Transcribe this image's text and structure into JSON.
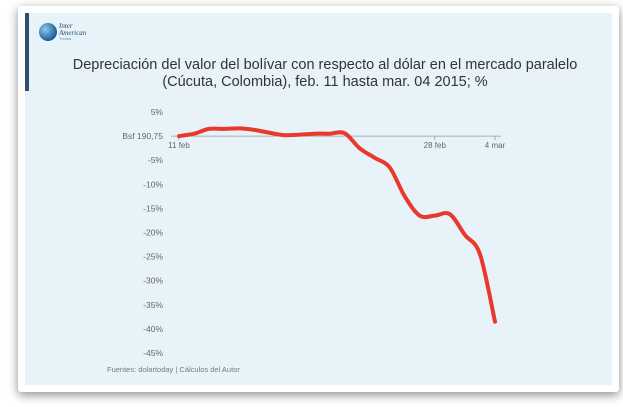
{
  "logo": {
    "line1": "Inter",
    "line2": "American",
    "line3": "Trends"
  },
  "source": "Fuentes: dolartoday | Cálculos del Autor",
  "colors": {
    "background": "#e8f3f9",
    "line": "#e8392c",
    "axis": "#999999",
    "text": "#333333"
  },
  "chart_data": {
    "type": "line",
    "title": "Depreciación del valor del bolívar con respecto al dólar en el mercado paralelo (Cúcuta, Colombia), feb. 11 hasta mar. 04 2015; %",
    "xlabel": "",
    "ylabel": "",
    "ylim": [
      -45,
      5
    ],
    "y_ticks": [
      5,
      0,
      -5,
      -10,
      -15,
      -20,
      -25,
      -30,
      -35,
      -40,
      -45
    ],
    "y_tick_labels": [
      "5%",
      "Bsf 190,75",
      "-5%",
      "-10%",
      "-15%",
      "-20%",
      "-25%",
      "-30%",
      "-35%",
      "-40%",
      "-45%"
    ],
    "x_range": [
      "2015-02-11",
      "2015-03-04"
    ],
    "x_tick_labels": [
      {
        "date": "2015-02-11",
        "label": "11 feb"
      },
      {
        "date": "2015-02-28",
        "label": "28 feb"
      },
      {
        "date": "2015-03-04",
        "label": "4 mar"
      }
    ],
    "grid": false,
    "series": [
      {
        "points": [
          {
            "x": "2015-02-11",
            "y": 0.0
          },
          {
            "x": "2015-02-12",
            "y": 0.5
          },
          {
            "x": "2015-02-13",
            "y": 1.5
          },
          {
            "x": "2015-02-14",
            "y": 1.5
          },
          {
            "x": "2015-02-15",
            "y": 1.6
          },
          {
            "x": "2015-02-16",
            "y": 1.3
          },
          {
            "x": "2015-02-17",
            "y": 0.7
          },
          {
            "x": "2015-02-18",
            "y": 0.2
          },
          {
            "x": "2015-02-19",
            "y": 0.3
          },
          {
            "x": "2015-02-20",
            "y": 0.5
          },
          {
            "x": "2015-02-21",
            "y": 0.5
          },
          {
            "x": "2015-02-22",
            "y": 0.6
          },
          {
            "x": "2015-02-23",
            "y": -2.5
          },
          {
            "x": "2015-02-24",
            "y": -4.5
          },
          {
            "x": "2015-02-25",
            "y": -6.5
          },
          {
            "x": "2015-02-26",
            "y": -12.5
          },
          {
            "x": "2015-02-27",
            "y": -16.5
          },
          {
            "x": "2015-02-28",
            "y": -16.5
          },
          {
            "x": "2015-03-01",
            "y": -16.2
          },
          {
            "x": "2015-03-02",
            "y": -20.5
          },
          {
            "x": "2015-03-03",
            "y": -24.5
          },
          {
            "x": "2015-03-04",
            "y": -38.5
          }
        ]
      }
    ]
  }
}
